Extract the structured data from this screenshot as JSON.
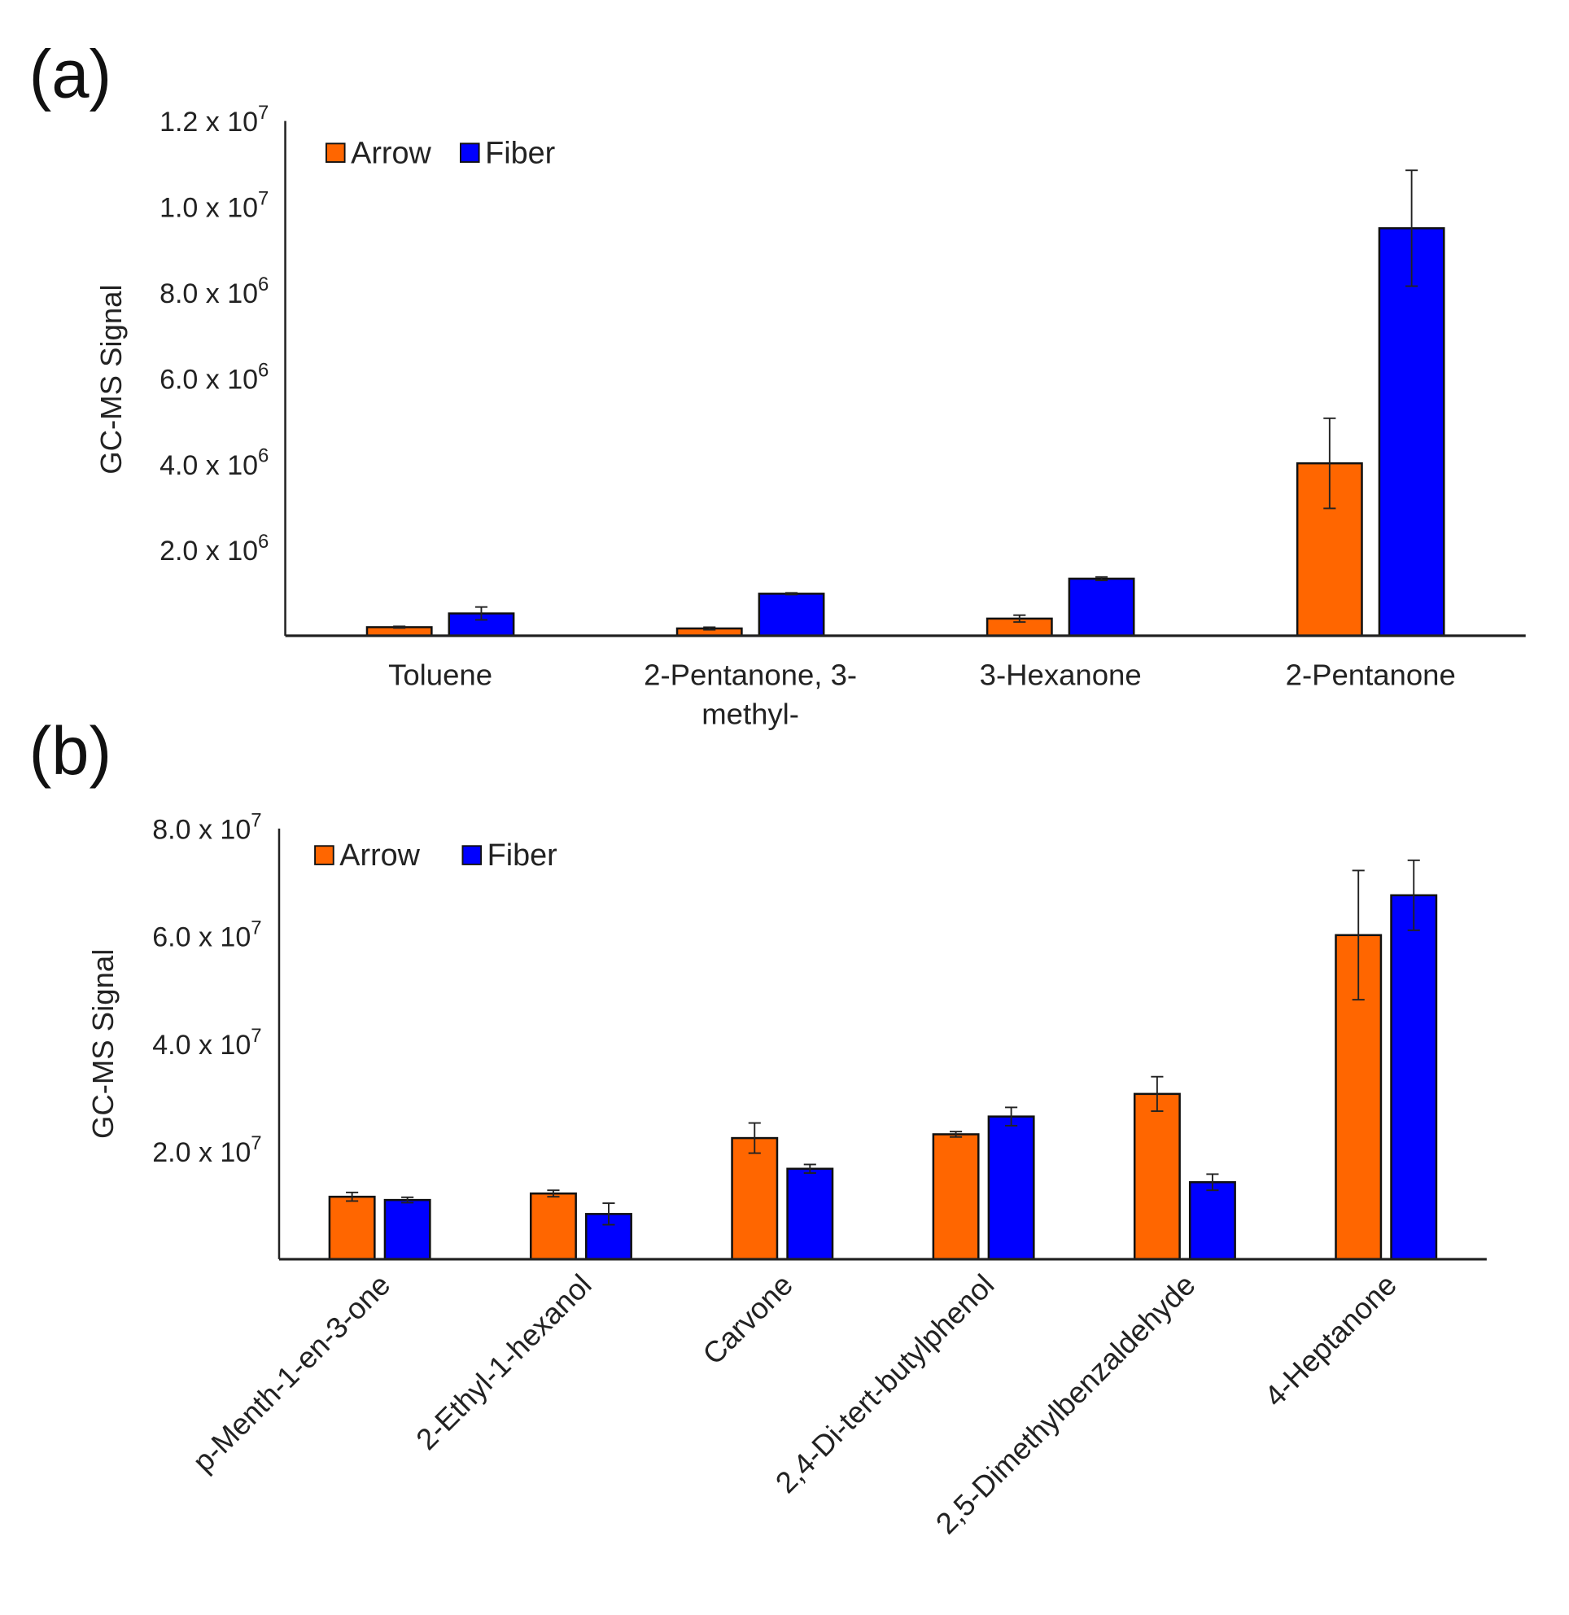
{
  "colors": {
    "arrow": "#FF6600",
    "fiber": "#0000FF",
    "axis": "#222222"
  },
  "chart_data": [
    {
      "type": "bar",
      "panel_label": "(a)",
      "ylabel": "GC-MS Signal",
      "ylim": [
        0,
        12000000
      ],
      "yticks": [
        {
          "value": 2000000,
          "mantissa": "2.0 x 10",
          "exp": "6"
        },
        {
          "value": 4000000,
          "mantissa": "4.0 x 10",
          "exp": "6"
        },
        {
          "value": 6000000,
          "mantissa": "6.0 x 10",
          "exp": "6"
        },
        {
          "value": 8000000,
          "mantissa": "8.0 x 10",
          "exp": "6"
        },
        {
          "value": 10000000,
          "mantissa": "1.0 x 10",
          "exp": "7"
        },
        {
          "value": 12000000,
          "mantissa": "1.2 x 10",
          "exp": "7"
        }
      ],
      "categories": [
        [
          "Toluene"
        ],
        [
          "2-Pentanone, 3-",
          "methyl-"
        ],
        [
          "3-Hexanone"
        ],
        [
          "2-Pentanone"
        ]
      ],
      "legend": {
        "placement": "top-left"
      },
      "series": [
        {
          "name": "Arrow",
          "values": [
            200000,
            170000,
            400000,
            4020000
          ],
          "errors": [
            20000,
            30000,
            80000,
            1050000
          ]
        },
        {
          "name": "Fiber",
          "values": [
            520000,
            980000,
            1330000,
            9500000
          ],
          "errors": [
            150000,
            20000,
            40000,
            1350000
          ]
        }
      ]
    },
    {
      "type": "bar",
      "panel_label": "(b)",
      "ylabel": "GC-MS Signal",
      "ylim": [
        0,
        80000000
      ],
      "yticks": [
        {
          "value": 20000000,
          "mantissa": "2.0 x 10",
          "exp": "7"
        },
        {
          "value": 40000000,
          "mantissa": "4.0 x 10",
          "exp": "7"
        },
        {
          "value": 60000000,
          "mantissa": "6.0 x 10",
          "exp": "7"
        },
        {
          "value": 80000000,
          "mantissa": "8.0 x 10",
          "exp": "7"
        }
      ],
      "categories": [
        [
          "p-Menth-1-en-3-one"
        ],
        [
          "2-Ethyl-1-hexanol"
        ],
        [
          "Carvone"
        ],
        [
          "2,4-Di-tert-butylphenol"
        ],
        [
          "2,5-Dimethylbenzaldehyde"
        ],
        [
          "4-Heptanone"
        ]
      ],
      "legend": {
        "placement": "top-left"
      },
      "series": [
        {
          "name": "Arrow",
          "values": [
            11600000,
            12200000,
            22500000,
            23200000,
            30700000,
            60200000
          ],
          "errors": [
            800000,
            600000,
            2800000,
            500000,
            3200000,
            12000000
          ]
        },
        {
          "name": "Fiber",
          "values": [
            11000000,
            8400000,
            16800000,
            26500000,
            14300000,
            67600000
          ],
          "errors": [
            500000,
            2000000,
            800000,
            1700000,
            1500000,
            6500000
          ]
        }
      ]
    }
  ]
}
